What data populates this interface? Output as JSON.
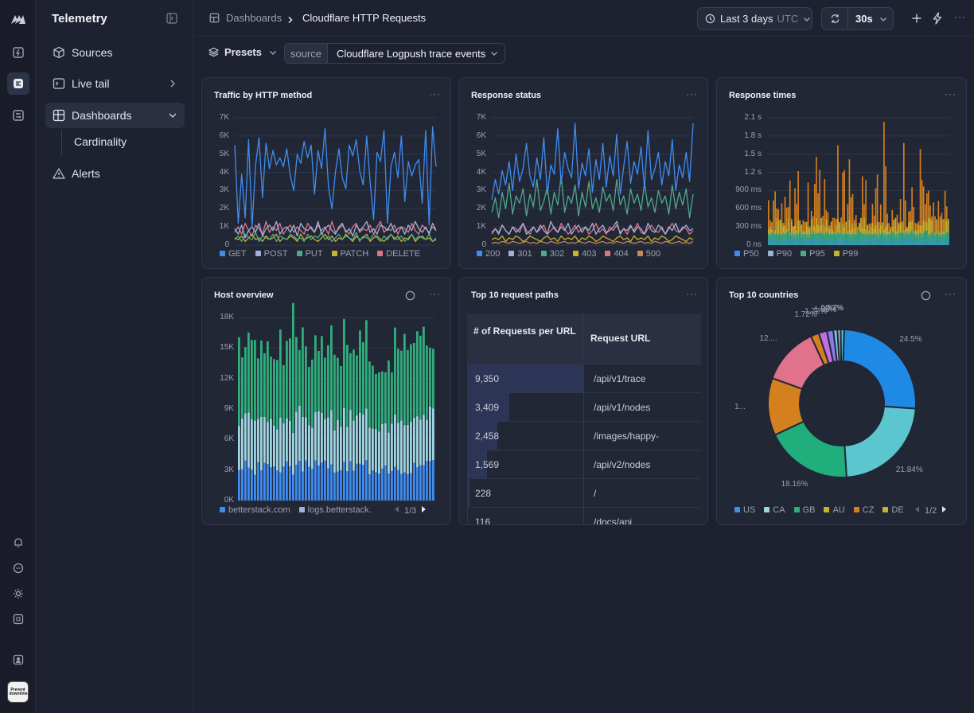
{
  "app": {
    "title": "Telemetry",
    "avatar_text": "Prevent downtime."
  },
  "sidebar": {
    "items": [
      {
        "label": "Sources"
      },
      {
        "label": "Live tail"
      },
      {
        "label": "Dashboards"
      },
      {
        "label": "Alerts"
      }
    ],
    "sub_items": [
      {
        "label": "Cardinality"
      }
    ]
  },
  "breadcrumb": {
    "root": "Dashboards",
    "current": "Cloudflare HTTP Requests"
  },
  "header": {
    "time_range": "Last 3 days",
    "timezone": "UTC",
    "refresh_interval": "30s"
  },
  "filters": {
    "presets_label": "Presets",
    "source_label": "source",
    "source_value": "Cloudflare Logpush trace events"
  },
  "colors": {
    "accent_blue": "#3f8cf2",
    "green": "#2fae7c",
    "yellow": "#c9b22d",
    "orange": "#d4801e",
    "pink": "#e0738b",
    "light_blue": "#5cc6cf"
  },
  "cards": {
    "traffic": {
      "title": "Traffic by HTTP method"
    },
    "status": {
      "title": "Response status"
    },
    "times": {
      "title": "Response times"
    },
    "host": {
      "title": "Host overview",
      "pager": "1/3"
    },
    "paths": {
      "title": "Top 10 request paths",
      "col1": "# of Requests per URL",
      "col2": "Request URL"
    },
    "countries": {
      "title": "Top 10 countries",
      "pager": "1/2"
    }
  },
  "table_rows": [
    {
      "count": "9,350",
      "url": "/api/v1/trace",
      "frac": 1.0
    },
    {
      "count": "3,409",
      "url": "/api/v1/nodes",
      "frac": 0.36
    },
    {
      "count": "2,458",
      "url": "/images/happy-",
      "frac": 0.26
    },
    {
      "count": "1,569",
      "url": "/api/v2/nodes",
      "frac": 0.17
    },
    {
      "count": "228",
      "url": "/",
      "frac": 0.02
    },
    {
      "count": "116",
      "url": "/docs/api",
      "frac": 0.01
    }
  ],
  "chart_data": [
    {
      "type": "line",
      "title": "Traffic by HTTP method",
      "yticks": [
        "7K",
        "6K",
        "5K",
        "4K",
        "3K",
        "2K",
        "1K",
        "0"
      ],
      "ylim": [
        0,
        7000
      ],
      "series": [
        {
          "name": "GET",
          "color": "#3f8cf2",
          "values": [
            5500,
            1200,
            3900,
            1500,
            5800,
            1000,
            4400,
            5900,
            2600,
            5600,
            4200,
            5200,
            4400,
            4800,
            4300,
            5300,
            3800,
            3000,
            5000,
            4500,
            5700,
            4800,
            5500,
            2800,
            5200,
            4200,
            6400,
            3200,
            2000,
            4000,
            5300,
            3700,
            3100,
            5500,
            4900,
            5800,
            4100,
            3300,
            6000,
            3500,
            1400,
            5100,
            4600,
            6300,
            1200,
            4300,
            5100,
            3700,
            6000,
            2400,
            4600,
            3800,
            4400,
            4700,
            2300,
            6300,
            1100,
            6500,
            4300
          ]
        },
        {
          "name": "POST",
          "color": "#9fb3d8",
          "values": [
            900,
            600,
            1100,
            400,
            800,
            1000,
            700,
            1200,
            500,
            900,
            1100,
            800,
            1300,
            600,
            900,
            1000,
            700,
            1100,
            500,
            1200,
            900,
            800,
            1000,
            700,
            1300,
            600,
            900,
            1100,
            800,
            600,
            1000,
            1200,
            700,
            900,
            500,
            1100,
            800,
            1000,
            1300,
            700,
            900,
            600,
            1100,
            1000,
            800,
            1200,
            700,
            900,
            1000,
            600,
            1100,
            800,
            1300,
            900,
            700,
            1000,
            600,
            1200,
            800
          ]
        },
        {
          "name": "PUT",
          "color": "#4fa98c",
          "values": [
            300,
            500,
            200,
            600,
            400,
            300,
            700,
            200,
            500,
            400,
            300,
            600,
            200,
            500,
            400,
            300,
            600,
            500,
            300,
            400,
            200,
            600,
            300,
            500,
            400,
            700,
            300,
            500,
            200,
            400,
            600,
            300,
            500,
            400,
            300,
            700,
            200,
            500,
            400,
            300,
            600,
            400,
            200,
            500,
            300,
            600,
            400,
            300,
            500,
            200,
            400,
            600,
            300,
            500,
            400,
            300,
            600,
            200,
            400
          ]
        },
        {
          "name": "PATCH",
          "color": "#c9b22d",
          "values": [
            400,
            300,
            500,
            200,
            400,
            600,
            300,
            400,
            200,
            500,
            300,
            400,
            600,
            200,
            400,
            300,
            500,
            400,
            200,
            600,
            300,
            400,
            500,
            300,
            200,
            400,
            600,
            300,
            500,
            200,
            400,
            300,
            600,
            400,
            200,
            500,
            300,
            400,
            600,
            200,
            400,
            500,
            300,
            200,
            400,
            600,
            300,
            500,
            200,
            400,
            300,
            600,
            200,
            400,
            500,
            300,
            400,
            200,
            300
          ]
        },
        {
          "name": "DELETE",
          "color": "#e0738b",
          "values": [
            700,
            1000,
            600,
            1200,
            800,
            500,
            1100,
            900,
            600,
            1300,
            700,
            1000,
            800,
            1200,
            600,
            900,
            1100,
            700,
            1000,
            800,
            600,
            1200,
            900,
            700,
            1100,
            800,
            1000,
            600,
            1300,
            700,
            900,
            1100,
            800,
            600,
            1000,
            1200,
            700,
            900,
            800,
            1100,
            600,
            1000,
            1300,
            700,
            900,
            800,
            1100,
            600,
            1000,
            900,
            700,
            1200,
            800,
            600,
            1100,
            900,
            700,
            1000,
            800
          ]
        }
      ]
    },
    {
      "type": "line",
      "title": "Response status",
      "yticks": [
        "7K",
        "6K",
        "5K",
        "4K",
        "3K",
        "2K",
        "1K",
        "0"
      ],
      "ylim": [
        0,
        7000
      ],
      "series": [
        {
          "name": "200",
          "color": "#3f8cf2",
          "values": [
            2500,
            3600,
            2800,
            4100,
            3300,
            4600,
            3000,
            5000,
            3500,
            4200,
            5600,
            3800,
            3200,
            4800,
            3600,
            5900,
            2800,
            4400,
            3900,
            6400,
            3400,
            5100,
            4200,
            3700,
            6700,
            3100,
            4500,
            3800,
            5300,
            2900,
            4700,
            3600,
            5600,
            3200,
            4900,
            3800,
            6100,
            2800,
            4300,
            5700,
            3400,
            4600,
            3900,
            5400,
            3100,
            6300,
            3600,
            4200,
            5100,
            3300,
            4600,
            3800,
            5800,
            3000,
            4400,
            3700,
            5100,
            3500,
            6700
          ]
        },
        {
          "name": "301",
          "color": "#9fb3d8",
          "values": [
            700,
            900,
            600,
            1100,
            800,
            600,
            1000,
            700,
            900,
            1200,
            600,
            800,
            1000,
            700,
            1100,
            800,
            600,
            1300,
            900,
            700,
            1000,
            800,
            1200,
            600,
            900,
            1100,
            700,
            1000,
            800,
            1200,
            600,
            900,
            1100,
            700,
            800,
            1000,
            1300,
            600,
            900,
            800,
            1100,
            700,
            1000,
            900,
            600,
            1200,
            800,
            700,
            1100,
            900,
            600,
            1000,
            800,
            1200,
            700,
            900,
            1100,
            800,
            900
          ]
        },
        {
          "name": "302",
          "color": "#4fa98c",
          "values": [
            1800,
            2600,
            1500,
            2900,
            2000,
            3400,
            1700,
            2700,
            2300,
            3100,
            1600,
            2800,
            2100,
            3600,
            1900,
            2400,
            3200,
            1700,
            2900,
            2200,
            3800,
            1800,
            2700,
            2300,
            3300,
            1600,
            2900,
            2100,
            3500,
            2000,
            2600,
            1800,
            3200,
            2400,
            2800,
            1900,
            3600,
            2200,
            2700,
            1700,
            3100,
            2300,
            2800,
            1900,
            3400,
            2100,
            2600,
            1800,
            3000,
            2300,
            2700,
            1700,
            3300,
            2000,
            2900,
            2200,
            3100,
            1500,
            2800
          ]
        },
        {
          "name": "403",
          "color": "#c9b22d",
          "values": [
            300,
            400,
            300,
            500,
            200,
            400,
            300,
            500,
            400,
            200,
            300,
            500,
            400,
            300,
            200,
            400,
            500,
            300,
            400,
            200,
            500,
            300,
            400,
            300,
            500,
            200,
            400,
            300,
            500,
            400,
            200,
            300,
            500,
            400,
            300,
            200,
            400,
            500,
            300,
            400,
            200,
            500,
            300,
            400,
            300,
            500,
            200,
            400,
            300,
            500,
            400,
            200,
            300,
            500,
            400,
            300,
            200,
            400,
            300
          ]
        },
        {
          "name": "404",
          "color": "#e0738b",
          "values": [
            600,
            900,
            700,
            1100,
            800,
            600,
            1000,
            900,
            700,
            1200,
            800,
            600,
            1000,
            700,
            900,
            1100,
            600,
            800,
            1000,
            700,
            1200,
            900,
            600,
            800,
            1100,
            700,
            900,
            1000,
            600,
            800,
            1200,
            700,
            900,
            600,
            1000,
            800,
            1100,
            700,
            900,
            600,
            1000,
            800,
            1200,
            700,
            600,
            900,
            1100,
            800,
            700,
            1000,
            600,
            900,
            1200,
            800,
            700,
            1000,
            900,
            600,
            800
          ]
        },
        {
          "name": "500",
          "color": "#c98b52",
          "values": [
            100,
            150,
            100,
            200,
            150,
            100,
            200,
            150,
            100,
            150,
            200,
            100,
            150,
            100,
            200,
            150,
            100,
            200,
            150,
            100,
            150,
            200,
            100,
            150,
            100,
            200,
            150,
            100,
            200,
            150,
            100,
            150,
            200,
            100,
            150,
            100,
            200,
            150,
            100,
            200,
            150,
            100,
            150,
            200,
            100,
            150,
            100,
            200,
            150,
            100,
            200,
            150,
            100,
            150,
            200,
            100,
            150,
            100,
            200
          ]
        }
      ]
    },
    {
      "type": "bar",
      "title": "Response times",
      "yticks": [
        "2.1 s",
        "1.8 s",
        "1.5 s",
        "1.2 s",
        "900 ms",
        "600 ms",
        "300 ms",
        "0 ns"
      ],
      "ylim": [
        0,
        2100
      ],
      "series": [
        {
          "name": "P50",
          "color": "#3f8cf2"
        },
        {
          "name": "P90",
          "color": "#9fb3d8"
        },
        {
          "name": "P95",
          "color": "#4fa98c"
        },
        {
          "name": "P99",
          "color": "#c9b22d"
        }
      ]
    },
    {
      "type": "bar",
      "title": "Host overview",
      "yticks": [
        "18K",
        "15K",
        "12K",
        "9K",
        "6K",
        "3K",
        "0K"
      ],
      "ylim": [
        0,
        18000
      ],
      "series": [
        {
          "name": "betterstack.com",
          "color": "#3f8cf2"
        },
        {
          "name": "logs.betterstack.",
          "color": "#9fb3d8"
        }
      ]
    },
    {
      "type": "pie",
      "title": "Top 10 countries",
      "labels": [
        "US",
        "CA",
        "GB",
        "AU",
        "CZ",
        "DE",
        "",
        "",
        "",
        "",
        ""
      ],
      "values": [
        24.5,
        21.84,
        18.16,
        12.0,
        12.0,
        1.72,
        1.72,
        1.35,
        0.83,
        0.7,
        0.7
      ],
      "display": [
        "24.5%",
        "21.84%",
        "18.16%",
        "1...",
        "12....",
        "1.72%",
        "1.72%",
        "1.35%",
        "0.83%",
        "0.7%",
        ""
      ],
      "colors": [
        "#1f8ae6",
        "#5cc6cf",
        "#1fae7c",
        "#d4801e",
        "#e0738b",
        "#d4801e",
        "#c06fe0",
        "#8a79e6",
        "#7ad4e4",
        "#9fb3d8",
        "#5cc6cf"
      ]
    }
  ]
}
